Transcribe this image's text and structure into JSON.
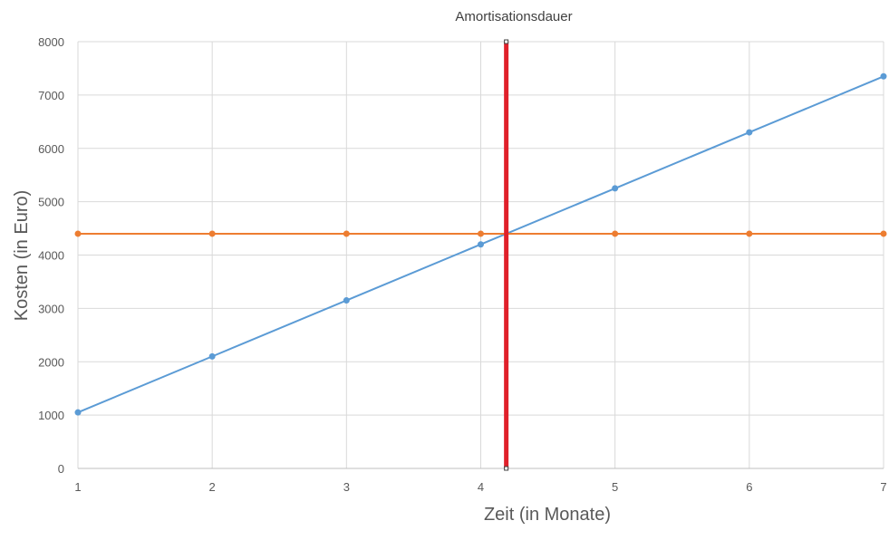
{
  "chart_data": {
    "type": "line",
    "title": "Amortisationsdauer",
    "xlabel": "Zeit (in Monate)",
    "ylabel": "Kosten (in Euro)",
    "x": [
      1,
      2,
      3,
      4,
      5,
      6,
      7
    ],
    "xlim": [
      1,
      7
    ],
    "ylim": [
      0,
      8000
    ],
    "yticks": [
      0,
      1000,
      2000,
      3000,
      4000,
      5000,
      6000,
      7000,
      8000
    ],
    "xticks": [
      1,
      2,
      3,
      4,
      5,
      6,
      7
    ],
    "grid": true,
    "legend": "none",
    "series": [
      {
        "values": [
          1050,
          2100,
          3150,
          4200,
          5250,
          6300,
          7350
        ],
        "color": "#5b9bd5",
        "marker": "circle"
      },
      {
        "values": [
          4400,
          4400,
          4400,
          4400,
          4400,
          4400,
          4400
        ],
        "color": "#ed7d31",
        "marker": "circle"
      }
    ],
    "vline": {
      "x": 4.19,
      "color": "#e0202a"
    }
  }
}
